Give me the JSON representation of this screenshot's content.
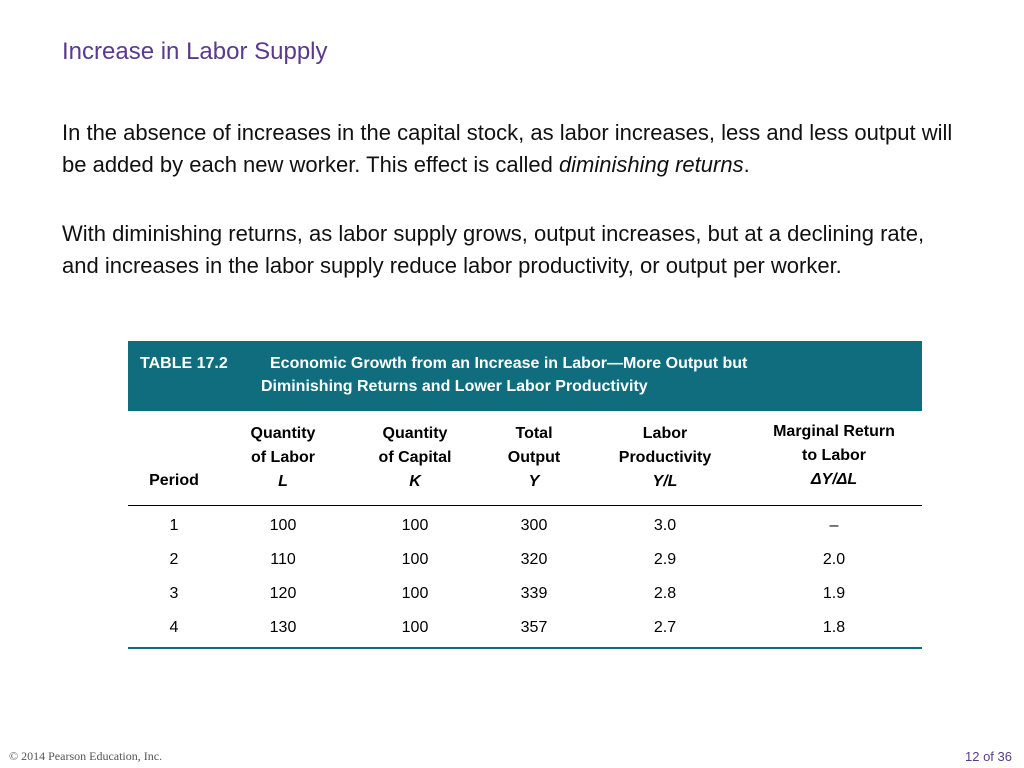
{
  "slide": {
    "title": "Increase in Labor Supply",
    "para1_lead": "In the absence of increases in the capital stock, as labor increases, less and less output will be added by each new worker.  This effect is called ",
    "para1_em": "diminishing returns",
    "para1_end": ".",
    "para2": "With diminishing returns, as labor supply grows, output increases, but at a declining rate, and increases in the labor supply reduce labor productivity, or output per worker."
  },
  "table": {
    "number": "TABLE 17.2",
    "title_line1": "Economic Growth from an Increase in Labor—More Output but",
    "title_line2": "Diminishing Returns and Lower Labor Productivity",
    "headers": [
      {
        "line1": "",
        "line2": "",
        "line3": "Period"
      },
      {
        "line1": "Quantity",
        "line2": "of Labor",
        "line3": "L"
      },
      {
        "line1": "Quantity",
        "line2": "of Capital",
        "line3": "K"
      },
      {
        "line1": "Total",
        "line2": "Output",
        "line3": "Y"
      },
      {
        "line1": "Labor",
        "line2": "Productivity",
        "line3": "Y/L"
      },
      {
        "line1": "Marginal Return",
        "line2": "to Labor",
        "line3": "ΔY/ΔL"
      }
    ],
    "rows": [
      [
        "1",
        "100",
        "100",
        "300",
        "3.0",
        "–"
      ],
      [
        "2",
        "110",
        "100",
        "320",
        "2.9",
        "2.0"
      ],
      [
        "3",
        "120",
        "100",
        "339",
        "2.8",
        "1.9"
      ],
      [
        "4",
        "130",
        "100",
        "357",
        "2.7",
        "1.8"
      ]
    ]
  },
  "footer": {
    "copyright": "© 2014 Pearson Education, Inc.",
    "page": "12 of 36"
  },
  "colors": {
    "title": "#5a3a8c",
    "table_header_bg": "#0f6d7e"
  }
}
